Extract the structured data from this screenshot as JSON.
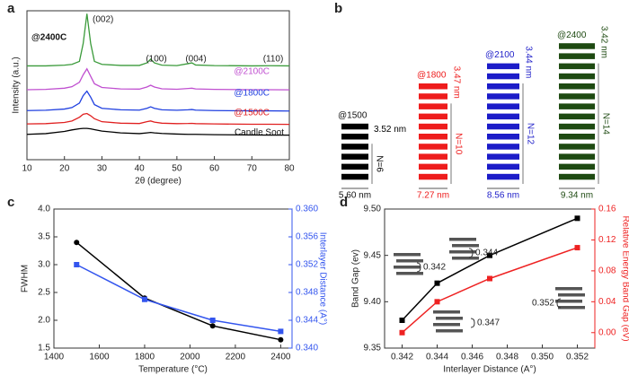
{
  "chart_data": [
    {
      "type": "line",
      "label": "a",
      "xlabel": "2θ (degree)",
      "ylabel": "Intensity (a.u.)",
      "x": [
        10,
        15,
        20,
        22,
        24,
        25,
        26,
        27,
        28,
        30,
        35,
        40,
        42,
        43,
        44,
        46,
        50,
        53,
        54,
        55,
        60,
        70,
        75,
        80
      ],
      "xlim": [
        10,
        80
      ],
      "xticks": [
        10,
        20,
        30,
        40,
        50,
        60,
        70,
        80
      ],
      "ylim": [
        0,
        100
      ],
      "series": [
        {
          "name": "Candle Soot",
          "color": "#000000",
          "values": [
            17,
            17.5,
            19,
            20,
            20.8,
            21,
            21,
            20.7,
            20.2,
            19.2,
            18,
            17.5,
            18,
            18.3,
            18,
            17.6,
            17.2,
            17,
            17,
            17,
            16.8,
            16.6,
            16.5,
            16.5
          ]
        },
        {
          "name": "@1500C",
          "color": "#e02020",
          "values": [
            24,
            24.2,
            25,
            26,
            28.5,
            30.5,
            31,
            29.5,
            27.5,
            25.5,
            24.5,
            24.3,
            25.5,
            26,
            25.2,
            24.5,
            24.2,
            24.3,
            24.4,
            24.2,
            24,
            23.8,
            23.8,
            23.7
          ]
        },
        {
          "name": "@1800C",
          "color": "#2040e0",
          "values": [
            33,
            33.2,
            34,
            35,
            38,
            43,
            46,
            42,
            37,
            34.5,
            33.5,
            33.3,
            34.5,
            35.5,
            34.5,
            33.5,
            33.2,
            33.5,
            33.7,
            33.3,
            33,
            32.8,
            32.8,
            32.7
          ]
        },
        {
          "name": "@2100C",
          "color": "#c050d0",
          "values": [
            47,
            47.2,
            48,
            49,
            52,
            57,
            61,
            56,
            51,
            48.5,
            47.5,
            47.4,
            48.8,
            50,
            48.8,
            47.6,
            47.3,
            47.8,
            48,
            47.5,
            47.2,
            47,
            47,
            46.9
          ]
        },
        {
          "name": "@2400C",
          "color": "#3a9a3a",
          "values": [
            63,
            63,
            63.5,
            64,
            66,
            78,
            98,
            78,
            66,
            64,
            63.3,
            63.3,
            65,
            67.5,
            65,
            63.5,
            63.2,
            64.5,
            65,
            63.6,
            63.2,
            63,
            63.1,
            63
          ]
        }
      ],
      "annotations": [
        "(002)",
        "(100)",
        "(004)",
        "(110)"
      ]
    },
    {
      "type": "line",
      "label": "c",
      "xlabel": "Temperature (°C)",
      "ylabel": "FWHM",
      "y2label": "Interlayer Distance (A°)",
      "x": [
        1500,
        1800,
        2100,
        2400
      ],
      "xlim": [
        1400,
        2450
      ],
      "xticks": [
        1400,
        1600,
        1800,
        2000,
        2200,
        2400
      ],
      "ylim": [
        1.5,
        4.0
      ],
      "yticks": [
        1.5,
        {
          "value": 2,
          "label": "2.0"
        },
        2.5,
        {
          "value": 3,
          "label": "3.0"
        },
        3.5,
        {
          "value": 4,
          "label": "4.0"
        }
      ],
      "y2lim": [
        0.34,
        0.36
      ],
      "y2ticks": [
        {
          "value": 0.34,
          "label": "0.340"
        },
        0.344,
        0.348,
        0.352,
        0.356,
        {
          "value": 0.36,
          "label": "0.360"
        }
      ],
      "series": [
        {
          "color": "#000000",
          "marker": "circle",
          "values": [
            3.4,
            2.4,
            1.9,
            1.65
          ]
        },
        {
          "color": "#3355ee",
          "marker": "square",
          "axis": "y2",
          "values": [
            0.352,
            0.347,
            0.344,
            0.3424
          ]
        }
      ]
    },
    {
      "type": "line",
      "label": "d",
      "xlabel": "Interlayer Distance (A°)",
      "ylabel": "Band Gap (ev)",
      "y2label": "Relative Energy Band Gap (eV)",
      "x": [
        0.342,
        0.344,
        0.347,
        0.352
      ],
      "xlim": [
        0.341,
        0.353
      ],
      "xticks": [
        0.342,
        0.344,
        0.346,
        0.348,
        {
          "value": 0.35,
          "label": "0.350"
        },
        0.352
      ],
      "ylim": [
        9.35,
        9.5
      ],
      "yticks": [
        9.35,
        {
          "value": 9.4,
          "label": "9.40"
        },
        9.45,
        {
          "value": 9.5,
          "label": "9.50"
        }
      ],
      "y2lim": [
        -0.02,
        0.16
      ],
      "y2ticks": [
        {
          "value": 0,
          "label": "0.00"
        },
        0.04,
        0.08,
        0.12,
        0.16
      ],
      "series": [
        {
          "color": "#000000",
          "marker": "square",
          "values": [
            9.38,
            9.42,
            9.45,
            9.49
          ]
        },
        {
          "color": "#ee2222",
          "marker": "square",
          "axis": "y2",
          "values": [
            0,
            0.04,
            0.07,
            0.11
          ]
        }
      ],
      "annotations": [
        "0.344",
        "0.342",
        "0.352",
        "0.347"
      ]
    }
  ],
  "diagram": {
    "label": "b",
    "stacks": [
      {
        "title": "@1500",
        "color": "#000000",
        "layers": 6,
        "n_label": "N=6",
        "spacing": "3.52 nm",
        "width": "5.60 nm"
      },
      {
        "title": "@1800",
        "color": "#ee1c1c",
        "layers": 10,
        "n_label": "N=10",
        "spacing": "3.47 nm",
        "width": "7.27 nm"
      },
      {
        "title": "@2100",
        "color": "#1c1cc8",
        "layers": 12,
        "n_label": "N=12",
        "spacing": "3.44 nm",
        "width": "8.56 nm"
      },
      {
        "title": "@2400",
        "color": "#1e4a12",
        "layers": 14,
        "n_label": "N=14",
        "spacing": "3.42 nm",
        "width": "9.34 nm"
      }
    ]
  }
}
